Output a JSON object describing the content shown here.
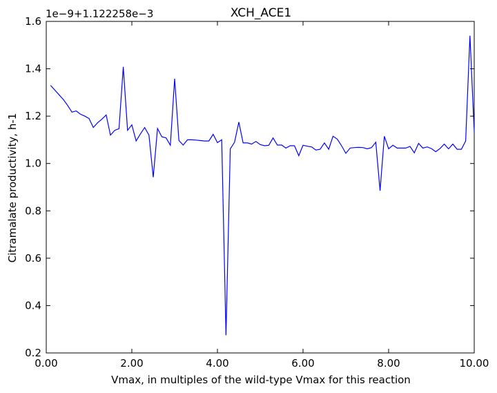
{
  "chart_data": {
    "type": "line",
    "title": "XCH_ACE1",
    "xlabel": "Vmax, in multiples of the wild-type Vmax for this reaction",
    "ylabel": "Citramalate productivity, h-1",
    "offset_text": "1e−9+1.122258e−3",
    "xlim": [
      0,
      10
    ],
    "ylim": [
      0.2,
      1.6
    ],
    "xticks": [
      "0.00",
      "2.00",
      "4.00",
      "6.00",
      "8.00",
      "10.00"
    ],
    "xtick_values": [
      0,
      2,
      4,
      6,
      8,
      10
    ],
    "yticks": [
      "0.2",
      "0.4",
      "0.6",
      "0.8",
      "1.0",
      "1.2",
      "1.4",
      "1.6"
    ],
    "ytick_values": [
      0.2,
      0.4,
      0.6,
      0.8,
      1.0,
      1.2,
      1.4,
      1.6
    ],
    "grid": false,
    "legend": "none",
    "series": [
      {
        "color": "#0000ff",
        "points": [
          [
            0.1,
            1.33
          ],
          [
            0.2,
            1.31
          ],
          [
            0.3,
            1.29
          ],
          [
            0.4,
            1.27
          ],
          [
            0.5,
            1.245
          ],
          [
            0.6,
            1.217
          ],
          [
            0.7,
            1.222
          ],
          [
            0.8,
            1.208
          ],
          [
            0.9,
            1.2
          ],
          [
            1.0,
            1.19
          ],
          [
            1.1,
            1.152
          ],
          [
            1.2,
            1.172
          ],
          [
            1.3,
            1.187
          ],
          [
            1.4,
            1.205
          ],
          [
            1.5,
            1.12
          ],
          [
            1.6,
            1.14
          ],
          [
            1.7,
            1.147
          ],
          [
            1.8,
            1.408
          ],
          [
            1.9,
            1.14
          ],
          [
            2.0,
            1.163
          ],
          [
            2.1,
            1.095
          ],
          [
            2.2,
            1.125
          ],
          [
            2.3,
            1.152
          ],
          [
            2.4,
            1.12
          ],
          [
            2.5,
            0.942
          ],
          [
            2.6,
            1.148
          ],
          [
            2.7,
            1.113
          ],
          [
            2.8,
            1.108
          ],
          [
            2.9,
            1.077
          ],
          [
            3.0,
            1.358
          ],
          [
            3.1,
            1.097
          ],
          [
            3.2,
            1.078
          ],
          [
            3.3,
            1.1
          ],
          [
            3.4,
            1.1
          ],
          [
            3.5,
            1.099
          ],
          [
            3.6,
            1.097
          ],
          [
            3.7,
            1.095
          ],
          [
            3.8,
            1.095
          ],
          [
            3.9,
            1.123
          ],
          [
            4.0,
            1.088
          ],
          [
            4.1,
            1.1
          ],
          [
            4.2,
            0.275
          ],
          [
            4.3,
            1.062
          ],
          [
            4.4,
            1.09
          ],
          [
            4.5,
            1.175
          ],
          [
            4.6,
            1.087
          ],
          [
            4.7,
            1.087
          ],
          [
            4.8,
            1.082
          ],
          [
            4.9,
            1.093
          ],
          [
            5.0,
            1.08
          ],
          [
            5.1,
            1.075
          ],
          [
            5.2,
            1.077
          ],
          [
            5.3,
            1.108
          ],
          [
            5.4,
            1.078
          ],
          [
            5.5,
            1.078
          ],
          [
            5.6,
            1.065
          ],
          [
            5.7,
            1.075
          ],
          [
            5.8,
            1.075
          ],
          [
            5.9,
            1.033
          ],
          [
            6.0,
            1.077
          ],
          [
            6.1,
            1.073
          ],
          [
            6.2,
            1.07
          ],
          [
            6.3,
            1.057
          ],
          [
            6.4,
            1.06
          ],
          [
            6.5,
            1.087
          ],
          [
            6.6,
            1.06
          ],
          [
            6.7,
            1.115
          ],
          [
            6.8,
            1.103
          ],
          [
            6.9,
            1.075
          ],
          [
            7.0,
            1.043
          ],
          [
            7.1,
            1.065
          ],
          [
            7.2,
            1.067
          ],
          [
            7.3,
            1.068
          ],
          [
            7.4,
            1.067
          ],
          [
            7.5,
            1.062
          ],
          [
            7.6,
            1.067
          ],
          [
            7.7,
            1.09
          ],
          [
            7.8,
            0.885
          ],
          [
            7.9,
            1.115
          ],
          [
            8.0,
            1.062
          ],
          [
            8.1,
            1.077
          ],
          [
            8.2,
            1.065
          ],
          [
            8.3,
            1.065
          ],
          [
            8.4,
            1.065
          ],
          [
            8.5,
            1.072
          ],
          [
            8.6,
            1.045
          ],
          [
            8.7,
            1.085
          ],
          [
            8.8,
            1.065
          ],
          [
            8.9,
            1.07
          ],
          [
            9.0,
            1.063
          ],
          [
            9.1,
            1.05
          ],
          [
            9.2,
            1.063
          ],
          [
            9.3,
            1.082
          ],
          [
            9.4,
            1.062
          ],
          [
            9.5,
            1.082
          ],
          [
            9.6,
            1.06
          ],
          [
            9.7,
            1.06
          ],
          [
            9.8,
            1.095
          ],
          [
            9.9,
            1.54
          ],
          [
            10.0,
            1.135
          ]
        ]
      }
    ]
  }
}
